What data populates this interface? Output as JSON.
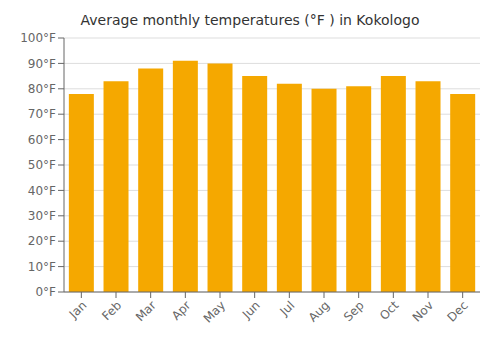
{
  "chart_data": {
    "type": "bar",
    "title": "Average monthly temperatures (°F ) in Kokologo",
    "categories": [
      "Jan",
      "Feb",
      "Mar",
      "Apr",
      "May",
      "Jun",
      "Jul",
      "Aug",
      "Sep",
      "Oct",
      "Nov",
      "Dec"
    ],
    "values": [
      78,
      83,
      88,
      91,
      90,
      85,
      82,
      80,
      81,
      85,
      83,
      78
    ],
    "color": "#F5A800",
    "ylim": [
      0,
      100
    ],
    "yticks": [
      {
        "value": 0,
        "label": "0°F"
      },
      {
        "value": 10,
        "label": "10°F"
      },
      {
        "value": 20,
        "label": "20°F"
      },
      {
        "value": 30,
        "label": "30°F"
      },
      {
        "value": 40,
        "label": "40°F"
      },
      {
        "value": 50,
        "label": "50°F"
      },
      {
        "value": 60,
        "label": "60°F"
      },
      {
        "value": 70,
        "label": "70°F"
      },
      {
        "value": 80,
        "label": "80°F"
      },
      {
        "value": 90,
        "label": "90°F"
      },
      {
        "value": 100,
        "label": "100°F"
      }
    ],
    "grid": true
  }
}
